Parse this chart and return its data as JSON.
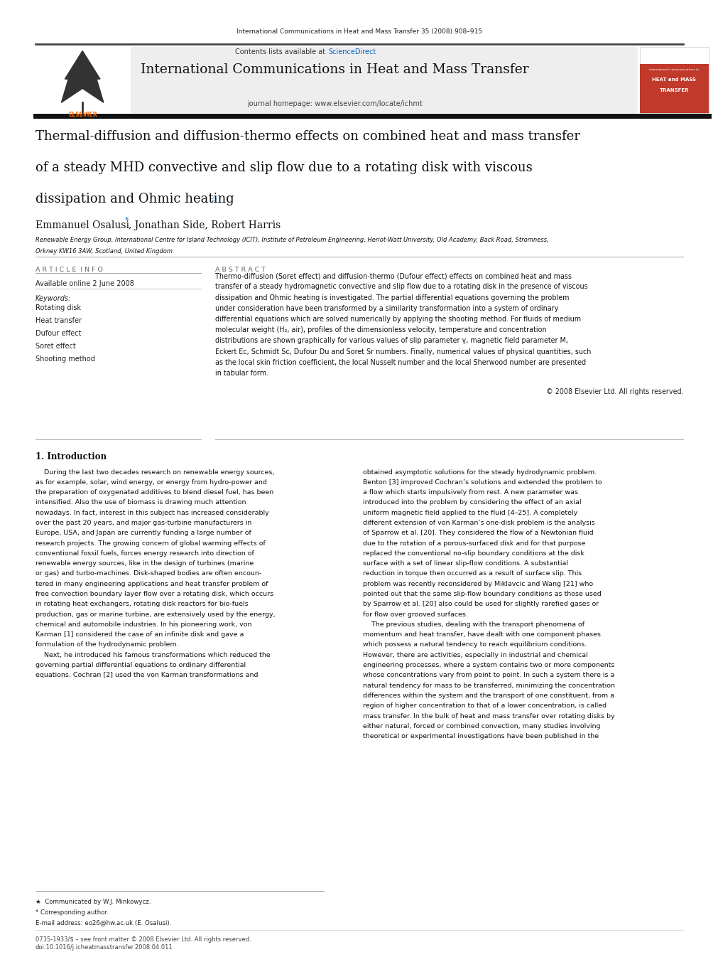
{
  "page_width": 9.92,
  "page_height": 13.23,
  "bg_color": "#ffffff",
  "header_journal_text": "International Communications in Heat and Mass Transfer 35 (2008) 908–915",
  "journal_header_bg": "#eeeeee",
  "contents_text": "Contents lists available at ",
  "sciencedirect_text": "ScienceDirect",
  "sciencedirect_color": "#0066cc",
  "journal_title": "International Communications in Heat and Mass Transfer",
  "journal_homepage": "journal homepage: www.elsevier.com/locate/ichmt",
  "elsevier_color": "#ff6600",
  "cover_bg": "#c0392b",
  "cover_title_line1": "international communications in",
  "cover_title_line2": "HEAT and MASS",
  "cover_title_line3": "TRANSFER",
  "paper_title_line1": "Thermal-diffusion and diffusion-thermo effects on combined heat and mass transfer",
  "paper_title_line2": "of a steady MHD convective and slip flow due to a rotating disk with viscous",
  "paper_title_line3": "dissipation and Ohmic heating",
  "star_symbol": "☆",
  "authors": "Emmanuel Osalusi ",
  "author_star": "*",
  "authors_rest": ", Jonathan Side, Robert Harris",
  "affiliation_line1": "Renewable Energy Group, International Centre for Island Technology (ICIT), Institute of Petroleum Engineering, Heriot-Watt University, Old Academy, Back Road, Stromness,",
  "affiliation_line2": "Orkney KW16 3AW, Scotland, United Kingdom",
  "section_article_info": "A R T I C L E  I N F O",
  "section_abstract": "A B S T R A C T",
  "available_online": "Available online 2 June 2008",
  "keywords_label": "Keywords:",
  "keywords": [
    "Rotating disk",
    "Heat transfer",
    "Dufour effect",
    "Soret effect",
    "Shooting method"
  ],
  "abstract_text": "Thermo-diffusion (Soret effect) and diffusion-thermo (Dufour effect) effects on combined heat and mass\ntransfer of a steady hydromagnetic convective and slip flow due to a rotating disk in the presence of viscous\ndissipation and Ohmic heating is investigated. The partial differential equations governing the problem\nunder consideration have been transformed by a similarity transformation into a system of ordinary\ndifferential equations which are solved numerically by applying the shooting method. For fluids of medium\nmolecular weight (H₂, air), profiles of the dimensionless velocity, temperature and concentration\ndistributions are shown graphically for various values of slip parameter γ, magnetic field parameter M,\nEckert Ec, Schmidt Sc, Dufour Du and Soret Sr numbers. Finally, numerical values of physical quantities, such\nas the local skin friction coefficient, the local Nusselt number and the local Sherwood number are presented\nin tabular form.",
  "copyright_text": "© 2008 Elsevier Ltd. All rights reserved.",
  "intro_heading": "1. Introduction",
  "intro_col1_lines": [
    "    During the last two decades research on renewable energy sources,",
    "as for example, solar, wind energy, or energy from hydro-power and",
    "the preparation of oxygenated additives to blend diesel fuel, has been",
    "intensified. Also the use of biomass is drawing much attention",
    "nowadays. In fact, interest in this subject has increased considerably",
    "over the past 20 years, and major gas-turbine manufacturers in",
    "Europe, USA, and Japan are currently funding a large number of",
    "research projects. The growing concern of global warming effects of",
    "conventional fossil fuels, forces energy research into direction of",
    "renewable energy sources, like in the design of turbines (marine",
    "or gas) and turbo-machines. Disk-shaped bodies are often encoun-",
    "tered in many engineering applications and heat transfer problem of",
    "free convection boundary layer flow over a rotating disk, which occurs",
    "in rotating heat exchangers, rotating disk reactors for bio-fuels",
    "production, gas or marine turbine, are extensively used by the energy,",
    "chemical and automobile industries. In his pioneering work, von",
    "Karman [1] considered the case of an infinite disk and gave a",
    "formulation of the hydrodynamic problem.",
    "    Next, he introduced his famous transformations which reduced the",
    "governing partial differential equations to ordinary differential",
    "equations. Cochran [2] used the von Karman transformations and"
  ],
  "intro_col2_lines": [
    "obtained asymptotic solutions for the steady hydrodynamic problem.",
    "Benton [3] improved Cochran’s solutions and extended the problem to",
    "a flow which starts impulsively from rest. A new parameter was",
    "introduced into the problem by considering the effect of an axial",
    "uniform magnetic field applied to the fluid [4–25]. A completely",
    "different extension of von Karman’s one-disk problem is the analysis",
    "of Sparrow et al. [20]. They considered the flow of a Newtonian fluid",
    "due to the rotation of a porous-surfaced disk and for that purpose",
    "replaced the conventional no-slip boundary conditions at the disk",
    "surface with a set of linear slip-flow conditions. A substantial",
    "reduction in torque then occurred as a result of surface slip. This",
    "problem was recently reconsidered by Miklavcic and Wang [21] who",
    "pointed out that the same slip-flow boundary conditions as those used",
    "by Sparrow et al. [20] also could be used for slightly rarefied gases or",
    "for flow over grooved surfaces.",
    "    The previous studies, dealing with the transport phenomena of",
    "momentum and heat transfer, have dealt with one component phases",
    "which possess a natural tendency to reach equilibrium conditions.",
    "However, there are activities, especially in industrial and chemical",
    "engineering processes, where a system contains two or more components",
    "whose concentrations vary from point to point. In such a system there is a",
    "natural tendency for mass to be transferred, minimizing the concentration",
    "differences within the system and the transport of one constituent, from a",
    "region of higher concentration to that of a lower concentration, is called",
    "mass transfer. In the bulk of heat and mass transfer over rotating disks by",
    "either natural, forced or combined convection, many studies involving",
    "theoretical or experimental investigations have been published in the"
  ],
  "footnote_star": "★  Communicated by W.J. Minkowycz.",
  "footnote_corresponding": "* Corresponding author.",
  "footnote_email": "E-mail address: eo26@hw.ac.uk (E. Osalusi).",
  "footnote_issn": "0735-1933/$ – see front matter © 2008 Elsevier Ltd. All rights reserved.",
  "footnote_doi": "doi:10.1016/j.icheatmasstransfer.2008.04.011"
}
